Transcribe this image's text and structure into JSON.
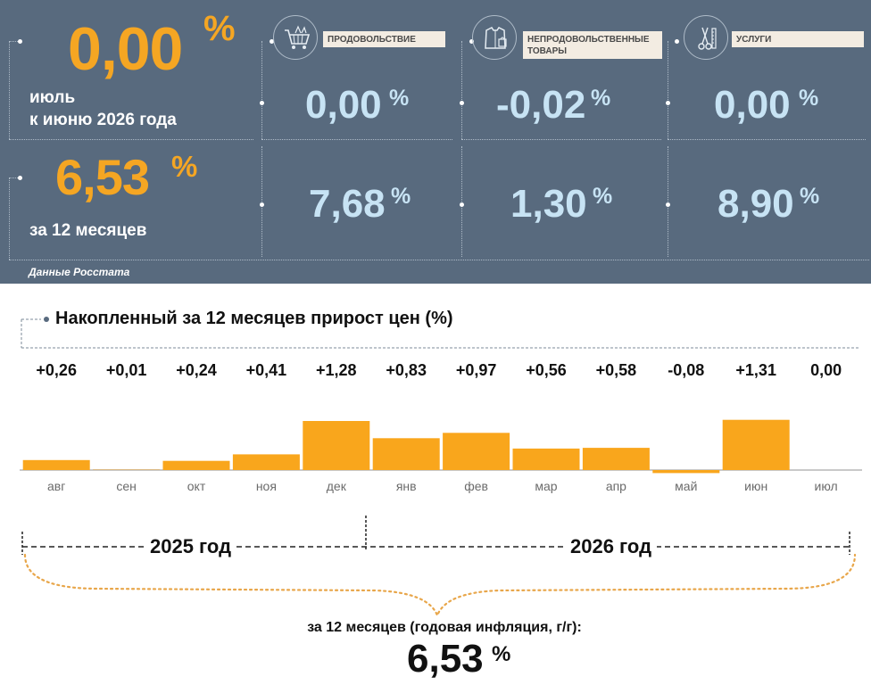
{
  "headline": {
    "month_value": "0,00",
    "month_unit": "%",
    "month_caption_line1": "июль",
    "month_caption_line2": "к июню 2026 года",
    "annual_value": "6,53",
    "annual_unit": "%",
    "annual_caption": "за 12 месяцев"
  },
  "categories": [
    {
      "name": "ПРОДОВОЛЬСТВИЕ",
      "icon": "shopping-cart-icon",
      "month_value": "0,00",
      "annual_value": "7,68",
      "unit": "%"
    },
    {
      "name": "НЕПРОДОВОЛЬСТВЕННЫЕ ТОВАРЫ",
      "icon": "clothing-icon",
      "month_value": "-0,02",
      "annual_value": "1,30",
      "unit": "%"
    },
    {
      "name": "УСЛУГИ",
      "icon": "scissors-comb-icon",
      "month_value": "0,00",
      "annual_value": "8,90",
      "unit": "%"
    }
  ],
  "source": "Данные Росстата",
  "colors": {
    "panel": "#586a7e",
    "accent_orange": "#f5a623",
    "light_blue": "#c7e3f4",
    "bar": "#f9a61c"
  },
  "chart_data": {
    "type": "bar",
    "title": "Накопленный за 12 месяцев прирост цен (%)",
    "categories": [
      "авг",
      "сен",
      "окт",
      "ноя",
      "дек",
      "янв",
      "фев",
      "мар",
      "апр",
      "май",
      "июн",
      "июл"
    ],
    "values": [
      0.26,
      0.01,
      0.24,
      0.41,
      1.28,
      0.83,
      0.97,
      0.56,
      0.58,
      -0.08,
      1.31,
      0.0
    ],
    "value_labels": [
      "+0,26",
      "+0,01",
      "+0,24",
      "+0,41",
      "+1,28",
      "+0,83",
      "+0,97",
      "+0,56",
      "+0,58",
      "-0,08",
      "+1,31",
      "0,00"
    ],
    "xlabel": "",
    "ylabel": "",
    "grid": false,
    "year_groups": [
      {
        "label": "2025 год",
        "months": [
          "авг",
          "сен",
          "окт",
          "ноя",
          "дек"
        ]
      },
      {
        "label": "2026 год",
        "months": [
          "янв",
          "фев",
          "мар",
          "апр",
          "май",
          "июн",
          "июл"
        ]
      }
    ]
  },
  "summary": {
    "caption": "за 12 месяцев (годовая инфляция, г/г):",
    "value": "6,53",
    "unit": "%"
  }
}
